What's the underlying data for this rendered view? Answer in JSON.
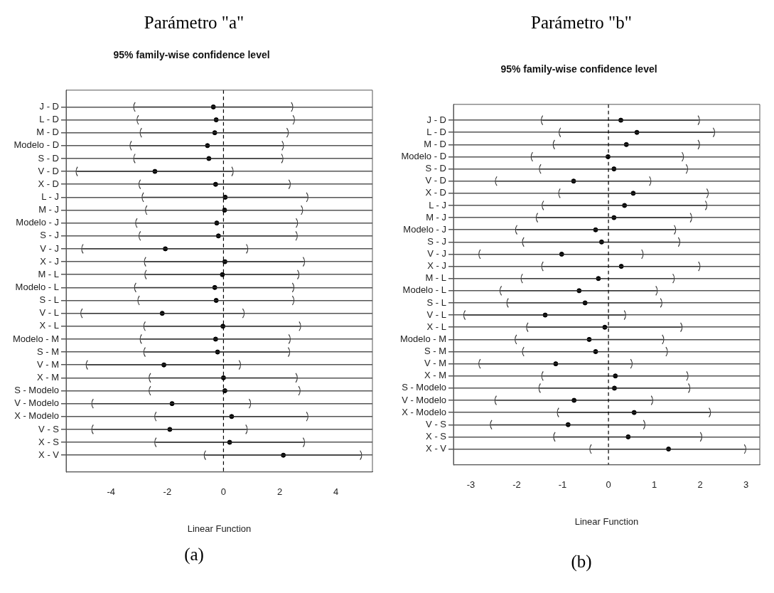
{
  "chart_data": [
    {
      "type": "scatter",
      "title": "Parámetro \"a\"",
      "subtitle": "95% family-wise confidence level",
      "xlabel": "Linear Function",
      "annotations": [
        "(a)"
      ],
      "orientation": "horizontal",
      "marker": "circle",
      "grid": "y",
      "legend": false,
      "categories": [
        "J - D",
        "L - D",
        "M - D",
        "Modelo - D",
        "S - D",
        "V - D",
        "X - D",
        "L - J",
        "M - J",
        "Modelo - J",
        "S - J",
        "V - J",
        "X - J",
        "M - L",
        "Modelo - L",
        "S - L",
        "V - L",
        "X - L",
        "Modelo - M",
        "S - M",
        "V - M",
        "X - M",
        "S - Modelo",
        "V - Modelo",
        "X - Modelo",
        "V - S",
        "X - S",
        "X - V"
      ],
      "series": [
        {
          "color": "#000000",
          "values": [
            -0.36,
            -0.26,
            -0.31,
            -0.57,
            -0.52,
            -2.44,
            -0.28,
            0.06,
            0.04,
            -0.24,
            -0.18,
            -2.07,
            0.05,
            -0.04,
            -0.31,
            -0.26,
            -2.18,
            -0.02,
            -0.28,
            -0.21,
            -2.12,
            0.0,
            0.05,
            -1.83,
            0.29,
            -1.91,
            0.22,
            2.13
          ],
          "errors": [
            [
              -3.17,
              2.44
            ],
            [
              -3.05,
              2.5
            ],
            [
              -2.94,
              2.28
            ],
            [
              -3.3,
              2.11
            ],
            [
              -3.17,
              2.09
            ],
            [
              -5.22,
              0.32
            ],
            [
              -2.98,
              2.35
            ],
            [
              -2.87,
              2.98
            ],
            [
              -2.75,
              2.79
            ],
            [
              -3.1,
              2.61
            ],
            [
              -2.98,
              2.6
            ],
            [
              -5.02,
              0.84
            ],
            [
              -2.79,
              2.86
            ],
            [
              -2.77,
              2.66
            ],
            [
              -3.14,
              2.48
            ],
            [
              -3.02,
              2.48
            ],
            [
              -5.05,
              0.71
            ],
            [
              -2.81,
              2.72
            ],
            [
              -2.94,
              2.35
            ],
            [
              -2.81,
              2.33
            ],
            [
              -4.86,
              0.58
            ],
            [
              -2.62,
              2.6
            ],
            [
              -2.62,
              2.7
            ],
            [
              -4.66,
              0.94
            ],
            [
              -2.42,
              2.98
            ],
            [
              -4.66,
              0.82
            ],
            [
              -2.42,
              2.86
            ],
            [
              -0.66,
              4.89
            ]
          ]
        }
      ],
      "xlim": [
        -5.6,
        5.3
      ],
      "xticks": [
        -4,
        -2,
        0,
        2,
        4
      ],
      "ref_lines": [
        {
          "axis": "x",
          "value": 0,
          "line_style": "dashed",
          "color": "#000000"
        }
      ]
    },
    {
      "type": "scatter",
      "title": "Parámetro \"b\"",
      "subtitle": "95% family-wise confidence level",
      "xlabel": "Linear Function",
      "annotations": [
        "(b)"
      ],
      "orientation": "horizontal",
      "marker": "circle",
      "grid": "y",
      "legend": false,
      "categories": [
        "J - D",
        "L - D",
        "M - D",
        "Modelo - D",
        "S - D",
        "V - D",
        "X - D",
        "L - J",
        "M - J",
        "Modelo - J",
        "S - J",
        "V - J",
        "X - J",
        "M - L",
        "Modelo - L",
        "S - L",
        "V - L",
        "X - L",
        "Modelo - M",
        "S - M",
        "V - M",
        "X - M",
        "S - Modelo",
        "V - Modelo",
        "X - Modelo",
        "V - S",
        "X - S",
        "X - V"
      ],
      "series": [
        {
          "color": "#000000",
          "values": [
            0.27,
            0.62,
            0.39,
            -0.01,
            0.12,
            -0.76,
            0.54,
            0.35,
            0.12,
            -0.28,
            -0.15,
            -1.02,
            0.28,
            -0.22,
            -0.64,
            -0.51,
            -1.38,
            -0.08,
            -0.42,
            -0.28,
            -1.15,
            0.15,
            0.13,
            -0.75,
            0.56,
            -0.88,
            0.43,
            1.31
          ],
          "errors": [
            [
              -1.45,
              1.97
            ],
            [
              -1.06,
              2.3
            ],
            [
              -1.19,
              1.97
            ],
            [
              -1.67,
              1.62
            ],
            [
              -1.49,
              1.71
            ],
            [
              -2.45,
              0.91
            ],
            [
              -1.07,
              2.16
            ],
            [
              -1.43,
              2.13
            ],
            [
              -1.56,
              1.8
            ],
            [
              -2.01,
              1.45
            ],
            [
              -1.86,
              1.54
            ],
            [
              -2.81,
              0.74
            ],
            [
              -1.44,
              1.98
            ],
            [
              -1.89,
              1.42
            ],
            [
              -2.35,
              1.05
            ],
            [
              -2.2,
              1.15
            ],
            [
              -3.14,
              0.36
            ],
            [
              -1.77,
              1.59
            ],
            [
              -2.02,
              1.19
            ],
            [
              -1.86,
              1.27
            ],
            [
              -2.81,
              0.5
            ],
            [
              -1.44,
              1.72
            ],
            [
              -1.5,
              1.76
            ],
            [
              -2.46,
              0.95
            ],
            [
              -1.1,
              2.21
            ],
            [
              -2.56,
              0.78
            ],
            [
              -1.18,
              2.02
            ],
            [
              -0.39,
              2.98
            ]
          ]
        }
      ],
      "xlim": [
        -3.38,
        3.3
      ],
      "xticks": [
        -3,
        -2,
        -1,
        0,
        1,
        2,
        3
      ],
      "ref_lines": [
        {
          "axis": "x",
          "value": 0,
          "line_style": "dashed",
          "color": "#000000"
        }
      ]
    }
  ]
}
